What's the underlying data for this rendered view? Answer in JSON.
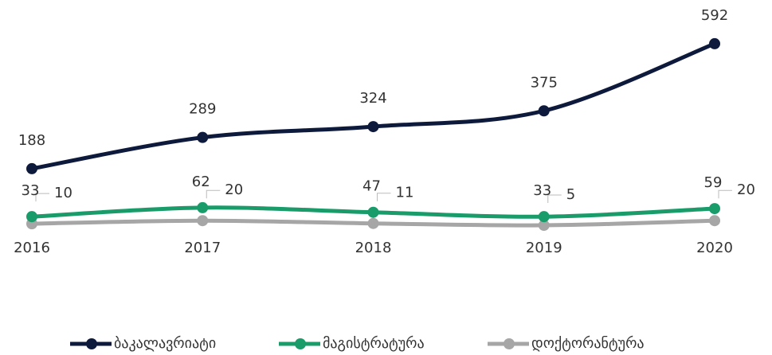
{
  "chart_data": {
    "type": "line",
    "categories": [
      "2016",
      "2017",
      "2018",
      "2019",
      "2020"
    ],
    "series": [
      {
        "name": "ბაკალავრიატი",
        "color": "#0e1a3c",
        "values": [
          188,
          289,
          324,
          375,
          592
        ]
      },
      {
        "name": "მაგისტრატურა",
        "color": "#1a9b6a",
        "values": [
          33,
          62,
          47,
          33,
          59
        ]
      },
      {
        "name": "დოქტორანტურა",
        "color": "#a6a6a6",
        "values": [
          10,
          20,
          11,
          5,
          20
        ]
      }
    ],
    "ylim": [
      0,
      600
    ],
    "grid": false,
    "legend": "bottom"
  }
}
